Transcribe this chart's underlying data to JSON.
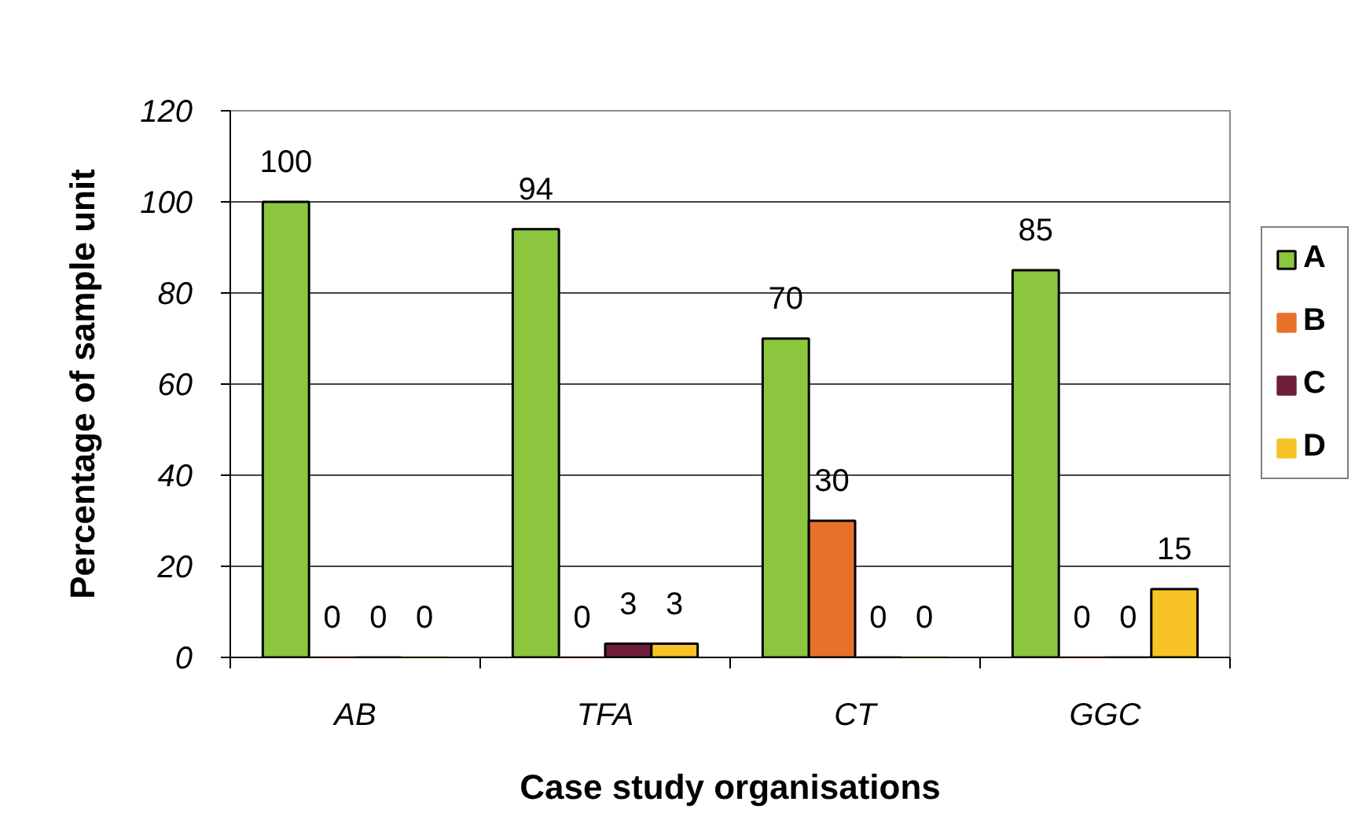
{
  "chart_data": {
    "type": "bar",
    "xlabel": "Case study organisations",
    "ylabel": "Percentage of sample unit",
    "categories": [
      "AB",
      "TFA",
      "CT",
      "GGC"
    ],
    "series": [
      {
        "name": "A",
        "color": "#8cc63e",
        "values": [
          100,
          94,
          70,
          85
        ]
      },
      {
        "name": "B",
        "color": "#e8722a",
        "values": [
          0,
          0,
          30,
          0
        ]
      },
      {
        "name": "C",
        "color": "#6e1e3a",
        "values": [
          0,
          3,
          0,
          0
        ]
      },
      {
        "name": "D",
        "color": "#f7c325",
        "values": [
          0,
          3,
          0,
          15
        ]
      }
    ],
    "ylim": [
      0,
      120
    ],
    "yticks": [
      0,
      20,
      40,
      60,
      80,
      100,
      120
    ],
    "grid": "y",
    "legend": "right",
    "data_labels": true
  }
}
